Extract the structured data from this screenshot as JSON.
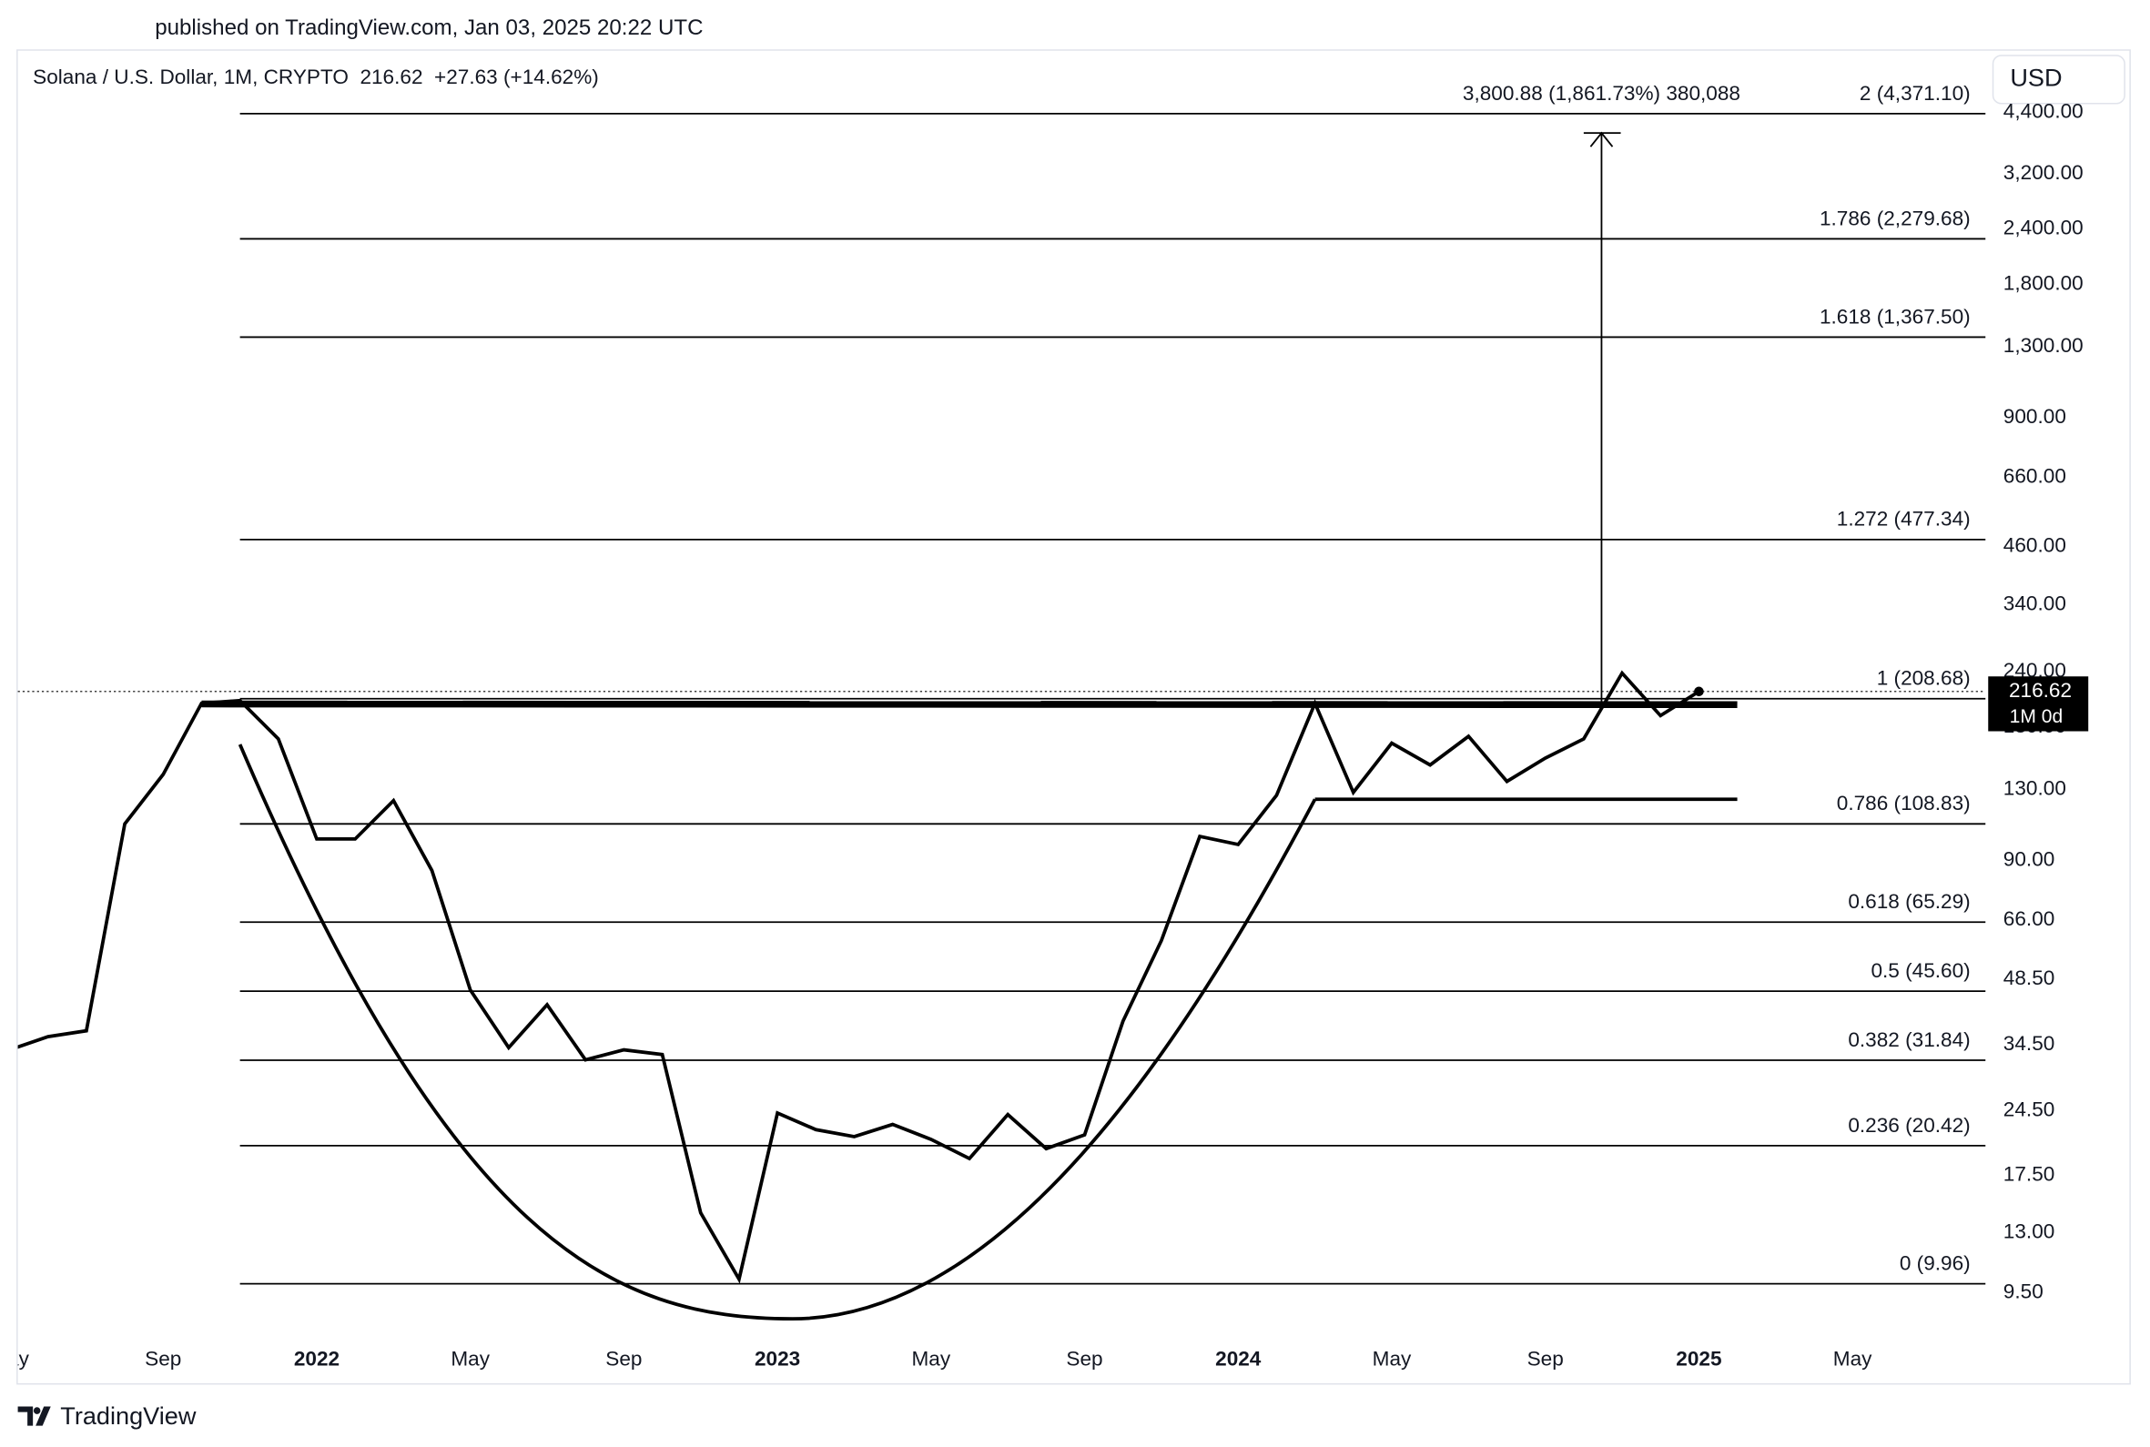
{
  "header": "published on TradingView.com, Jan 03, 2025 20:22 UTC",
  "brand": "TradingView",
  "chart_data": {
    "type": "line",
    "title": "Solana / U.S. Dollar, 1M, CRYPTO  216.62  +27.63 (+14.62%)",
    "currency": "USD",
    "log_scale": true,
    "grid": false,
    "color": "#000000",
    "categories": [
      "May",
      null,
      null,
      null,
      "Sep",
      null,
      null,
      null,
      "2022",
      null,
      null,
      null,
      "May",
      null,
      null,
      null,
      "Sep",
      null,
      null,
      null,
      "2023",
      null,
      null,
      null,
      "May",
      null,
      null,
      null,
      "Sep",
      null,
      null,
      null,
      "2024",
      null,
      null,
      null,
      "May",
      null,
      null,
      null,
      "Sep",
      null,
      null,
      null,
      "2025",
      null,
      null,
      null,
      "May"
    ],
    "values": [
      33.6,
      36.0,
      37.1,
      108.8,
      140.7,
      203.7,
      206.6,
      169.3,
      100.6,
      100.6,
      122.8,
      85.4,
      45.9,
      34.0,
      42.5,
      31.9,
      33.6,
      32.8,
      14.4,
      10.2,
      24.2,
      22.2,
      21.4,
      22.8,
      21.1,
      19.1,
      24.0,
      20.1,
      21.6,
      39.0,
      59.3,
      102.0,
      97.8,
      126.3,
      203.7,
      128.2,
      165.6,
      147.8,
      171.6,
      135.7,
      153.2,
      169.3,
      238.4,
      191.1,
      216.62,
      null,
      null,
      null,
      null
    ],
    "ylim": [
      7.3,
      6020
    ],
    "yticks": [
      {
        "value": 4400,
        "label": "4,400.00"
      },
      {
        "value": 3200,
        "label": "3,200.00"
      },
      {
        "value": 2400,
        "label": "2,400.00"
      },
      {
        "value": 1800,
        "label": "1,800.00"
      },
      {
        "value": 1300,
        "label": "1,300.00"
      },
      {
        "value": 900,
        "label": "900.00"
      },
      {
        "value": 660,
        "label": "660.00"
      },
      {
        "value": 460,
        "label": "460.00"
      },
      {
        "value": 340,
        "label": "340.00"
      },
      {
        "value": 240,
        "label": "240.00"
      },
      {
        "value": 180,
        "label": "180.00"
      },
      {
        "value": 130,
        "label": "130.00"
      },
      {
        "value": 90,
        "label": "90.00"
      },
      {
        "value": 66,
        "label": "66.00"
      },
      {
        "value": 48.5,
        "label": "48.50"
      },
      {
        "value": 34.5,
        "label": "34.50"
      },
      {
        "value": 24.5,
        "label": "24.50"
      },
      {
        "value": 17.5,
        "label": "17.50"
      },
      {
        "value": 13,
        "label": "13.00"
      },
      {
        "value": 9.5,
        "label": "9.50"
      }
    ],
    "fib_levels": [
      {
        "value": 4371.1,
        "label": "2 (4,371.10)"
      },
      {
        "value": 2279.68,
        "label": "1.786 (2,279.68)"
      },
      {
        "value": 1367.5,
        "label": "1.618 (1,367.50)"
      },
      {
        "value": 477.34,
        "label": "1.272 (477.34)"
      },
      {
        "value": 208.68,
        "label": "1 (208.68)"
      },
      {
        "value": 108.83,
        "label": "0.786 (108.83)"
      },
      {
        "value": 65.29,
        "label": "0.618 (65.29)"
      },
      {
        "value": 45.6,
        "label": "0.5 (45.60)"
      },
      {
        "value": 31.84,
        "label": "0.382 (31.84)"
      },
      {
        "value": 20.42,
        "label": "0.236 (20.42)"
      },
      {
        "value": 9.96,
        "label": "0 (9.96)"
      }
    ],
    "measurement": "3,800.88 (1,861.73%) 380,088",
    "last_price": 216.62,
    "countdown": "1M 0d"
  }
}
